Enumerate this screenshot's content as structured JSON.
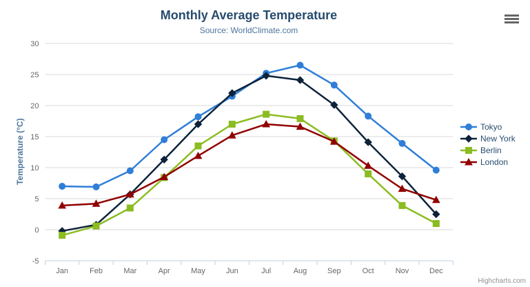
{
  "chart_data": {
    "type": "line",
    "title": "Monthly Average Temperature",
    "subtitle": "Source: WorldClimate.com",
    "xlabel": "",
    "ylabel": "Temperature (°C)",
    "ylim": [
      -5,
      30
    ],
    "ytick_interval": 5,
    "grid": true,
    "legend_position": "right",
    "categories": [
      "Jan",
      "Feb",
      "Mar",
      "Apr",
      "May",
      "Jun",
      "Jul",
      "Aug",
      "Sep",
      "Oct",
      "Nov",
      "Dec"
    ],
    "series": [
      {
        "name": "Tokyo",
        "color": "#2f7ed8",
        "marker": "circle",
        "values": [
          7.0,
          6.9,
          9.5,
          14.5,
          18.2,
          21.5,
          25.2,
          26.5,
          23.3,
          18.3,
          13.9,
          9.6
        ]
      },
      {
        "name": "New York",
        "color": "#0d233a",
        "marker": "diamond",
        "values": [
          -0.2,
          0.8,
          5.7,
          11.3,
          17.0,
          22.0,
          24.8,
          24.1,
          20.1,
          14.1,
          8.6,
          2.5
        ]
      },
      {
        "name": "Berlin",
        "color": "#8bbc21",
        "marker": "square",
        "values": [
          -0.9,
          0.6,
          3.5,
          8.4,
          13.5,
          17.0,
          18.6,
          17.9,
          14.3,
          9.0,
          3.9,
          1.0
        ]
      },
      {
        "name": "London",
        "color": "#910000",
        "marker": "triangle",
        "values": [
          3.9,
          4.2,
          5.7,
          8.5,
          11.9,
          15.2,
          17.0,
          16.6,
          14.2,
          10.3,
          6.6,
          4.8
        ]
      }
    ]
  },
  "credits": {
    "text": "Highcharts.com"
  },
  "colors": {
    "title_color": "#274b6d",
    "subtitle_color": "#4d759e",
    "axis_title_color": "#4d759e",
    "axis_label_color": "#666666",
    "gridline_color": "#d8d8d8",
    "axis_line_color": "#c0d0e0",
    "legend_text_color": "#274b6d",
    "export_icon_color": "#666666",
    "credits_color": "#909090"
  }
}
